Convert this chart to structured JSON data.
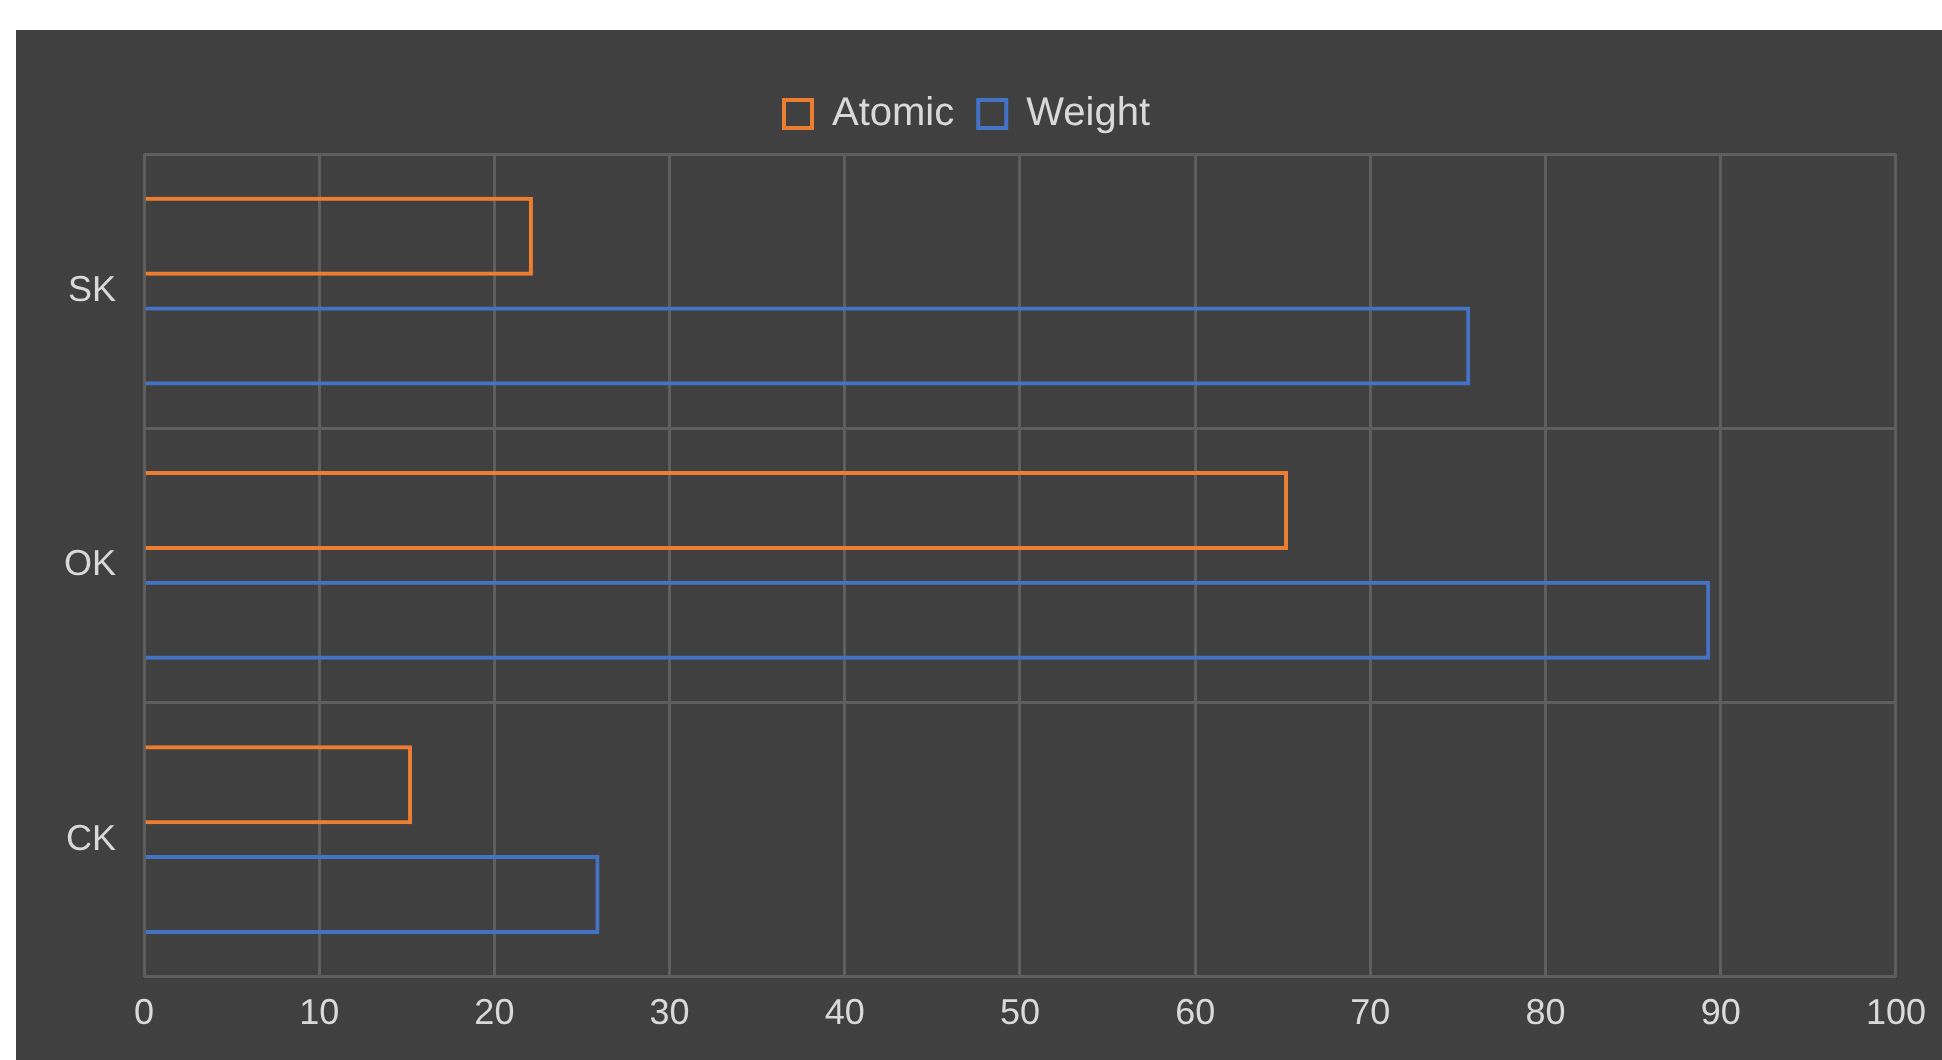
{
  "chart_data": {
    "type": "bar",
    "orientation": "horizontal",
    "categories": [
      "SK",
      "OK",
      "CK"
    ],
    "series": [
      {
        "name": "Atomic",
        "color": "#ed7d31",
        "values": [
          22.2,
          65.3,
          15.3
        ]
      },
      {
        "name": "Weight",
        "color": "#4472c4",
        "values": [
          75.7,
          89.4,
          26.0
        ]
      }
    ],
    "xlim": [
      0,
      100
    ],
    "xticks": [
      0,
      10,
      20,
      30,
      40,
      50,
      60,
      70,
      80,
      90,
      100
    ],
    "grid": true,
    "legend": "top"
  }
}
